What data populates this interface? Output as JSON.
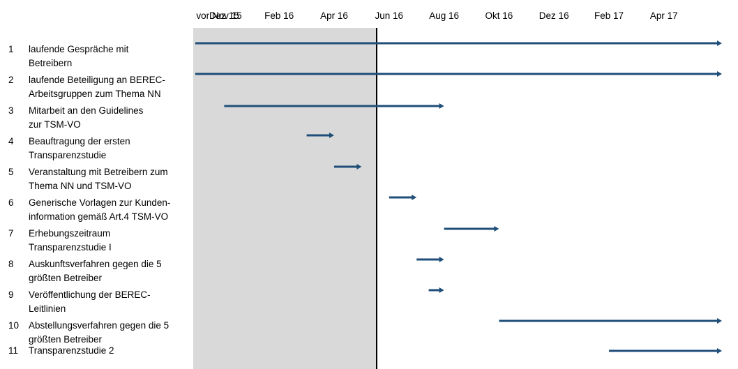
{
  "chart_data": {
    "type": "gantt",
    "title": "",
    "x_ticks": [
      "vor Nov 15",
      "Dez 15",
      "Feb 16",
      "Apr 16",
      "Jun 16",
      "Aug 16",
      "Okt 16",
      "Dez 16",
      "Feb 17",
      "Apr 17"
    ],
    "shaded_region": {
      "from": "vor Nov 15",
      "to": "Apr 16",
      "color": "#d9d9d9"
    },
    "today_line": "Apr 16",
    "bar_color": "#1f4e79",
    "tasks": [
      {
        "num": "1",
        "label": "laufende Gespräche mit\nBetreibern",
        "start": "vor Nov 15",
        "end": "Apr 17"
      },
      {
        "num": "2",
        "label": "laufende Beteiligung an BEREC-\nArbeitsgruppen zum Thema NN",
        "start": "vor Nov 15",
        "end": "Apr 17"
      },
      {
        "num": "3",
        "label": "Mitarbeit an den Guidelines\nzur TSM-VO",
        "start": "Dez 15",
        "end": "Aug 16"
      },
      {
        "num": "4",
        "label": "Beauftragung der ersten\nTransparenzstudie",
        "start": "Mär 16",
        "end": "Apr 16"
      },
      {
        "num": "5",
        "label": "Veranstaltung mit Betreibern zum\nThema NN und TSM-VO",
        "start": "Apr 16",
        "end": "Mai 16"
      },
      {
        "num": "6",
        "label": "Generische Vorlagen zur Kunden-\ninformation gemäß Art.4 TSM-VO",
        "start": "Jun 16",
        "end": "Jul 16"
      },
      {
        "num": "7",
        "label": "Erhebungszeitraum\nTransparenzstudie I",
        "start": "Aug 16",
        "end": "Okt 16"
      },
      {
        "num": "8",
        "label": "Auskunftsverfahren gegen die 5\ngrößten Betreiber",
        "start": "Jul 16",
        "end": "Aug 16"
      },
      {
        "num": "9",
        "label": "Veröffentlichung der BEREC-\nLeitlinien",
        "start": "Aug 16",
        "end": "Aug 16"
      },
      {
        "num": "10",
        "label": "Abstellungsverfahren gegen die 5\ngrößten Betreiber",
        "start": "Okt 16",
        "end": "Apr 17"
      },
      {
        "num": "11",
        "label": "Transparenzstudie 2",
        "start": "Feb 17",
        "end": "Apr 17"
      }
    ]
  }
}
